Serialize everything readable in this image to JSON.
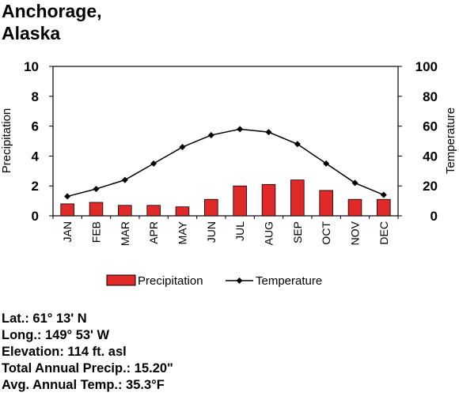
{
  "title_line1": "Anchorage,",
  "title_line2": "Alaska",
  "info": {
    "lat": "Lat.: 61° 13' N",
    "long": "Long.: 149° 53' W",
    "elevation": "Elevation: 114 ft. asl",
    "total_precip": "Total Annual Precip.: 15.20\"",
    "avg_temp": "Avg. Annual Temp.: 35.3°F"
  },
  "colors": {
    "bar": "#e02a2a",
    "line": "#000000"
  },
  "chart_data": {
    "type": "bar",
    "categories": [
      "JAN",
      "FEB",
      "MAR",
      "APR",
      "MAY",
      "JUN",
      "JUL",
      "AUG",
      "SEP",
      "OCT",
      "NOV",
      "DEC"
    ],
    "series": [
      {
        "name": "Precipitation",
        "type": "bar",
        "axis": "left",
        "values": [
          0.8,
          0.9,
          0.7,
          0.7,
          0.6,
          1.1,
          2.0,
          2.1,
          2.4,
          1.7,
          1.1,
          1.1
        ]
      },
      {
        "name": "Temperature",
        "type": "line",
        "axis": "right",
        "values": [
          13,
          18,
          24,
          35,
          46,
          54,
          58,
          56,
          48,
          35,
          22,
          14
        ]
      }
    ],
    "ylabel": "Precipitation",
    "ylabel_right": "Temperature",
    "ylim": [
      0,
      10
    ],
    "ylim_right": [
      0,
      100
    ],
    "yticks": [
      "0",
      "2",
      "4",
      "6",
      "8",
      "10"
    ],
    "yticks_right": [
      "0",
      "20",
      "40",
      "60",
      "80",
      "100"
    ],
    "grid": false,
    "legend": "bottom"
  }
}
